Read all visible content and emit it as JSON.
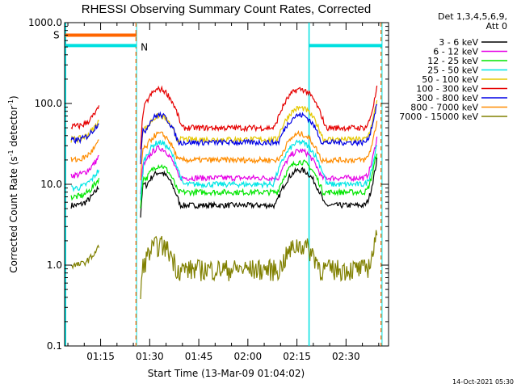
{
  "chart_data": {
    "type": "line",
    "title": "RHESSI Observing Summary Count Rates, Corrected",
    "ylabel_main": "Corrected Count Rate (s",
    "ylabel_sup1": "-1",
    "ylabel_mid": " detector",
    "ylabel_sup2": "-1",
    "ylabel_end": ")",
    "xlabel": "Start Time (13-Mar-09 01:04:02)",
    "yscale": "log",
    "ylim": [
      0.1,
      1000
    ],
    "xlim_minutes": [
      64,
      163
    ],
    "yticks": [
      {
        "v": 1000,
        "label": "1000.0"
      },
      {
        "v": 100,
        "label": "100.0"
      },
      {
        "v": 10,
        "label": "10.0"
      },
      {
        "v": 1,
        "label": "1.0"
      },
      {
        "v": 0.1,
        "label": "0.1"
      }
    ],
    "xticks": [
      {
        "v": 75,
        "label": "01:15"
      },
      {
        "v": 90,
        "label": "01:30"
      },
      {
        "v": 105,
        "label": "01:45"
      },
      {
        "v": 120,
        "label": "02:00"
      },
      {
        "v": 135,
        "label": "02:15"
      },
      {
        "v": 150,
        "label": "02:30"
      }
    ],
    "legend_header": [
      "Det 1,3,4,5,6,9,",
      "Att 0"
    ],
    "series": [
      {
        "name": "3 - 6 keV",
        "color": "#000000",
        "y1": 5.5,
        "y2": 10,
        "y3": 14,
        "y4": 5.5,
        "y5": 15
      },
      {
        "name": "6 - 12 keV",
        "color": "#e600e6",
        "y1": 13,
        "y2": 18,
        "y3": 28,
        "y4": 12,
        "y5": 26
      },
      {
        "name": "12 - 25 keV",
        "color": "#00e600",
        "y1": 7,
        "y2": 12,
        "y3": 17,
        "y4": 8,
        "y5": 19
      },
      {
        "name": "25 - 50 keV",
        "color": "#00e6e6",
        "y1": 9,
        "y2": 15,
        "y3": 33,
        "y4": 10,
        "y5": 33
      },
      {
        "name": "50 - 100 keV",
        "color": "#e6c800",
        "y1": 36,
        "y2": 50,
        "y3": 70,
        "y4": 36,
        "y5": 88
      },
      {
        "name": "100 - 300 keV",
        "color": "#e60000",
        "y1": 52,
        "y2": 72,
        "y3": 150,
        "y4": 50,
        "y5": 150
      },
      {
        "name": "300 - 800 keV",
        "color": "#0000e6",
        "y1": 35,
        "y2": 47,
        "y3": 72,
        "y4": 33,
        "y5": 72
      },
      {
        "name": "800 - 7000 keV",
        "color": "#ff8c00",
        "y1": 20,
        "y2": 28,
        "y3": 42,
        "y4": 20,
        "y5": 42
      },
      {
        "name": "7000 - 15000 keV",
        "color": "#808000",
        "y1": 1,
        "y2": 1,
        "y3": 1.8,
        "y4": 0.9,
        "y5": 1.8
      }
    ],
    "flags": [
      {
        "label": "S",
        "color": "#ff6600"
      },
      {
        "label": "N",
        "color": "#00e0e0"
      }
    ],
    "footer_stamp": "14-Oct-2021 05:30"
  }
}
